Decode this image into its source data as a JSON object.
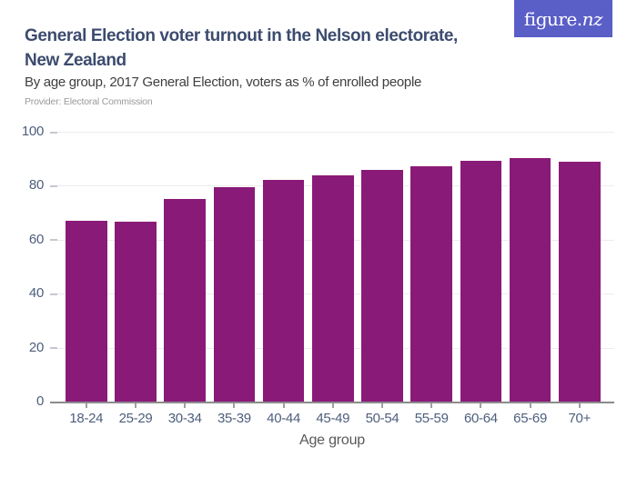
{
  "logo": {
    "text": "figure.nz",
    "text_roman": "figure.",
    "text_italic": "nz",
    "bg_color": "#5A5EC7",
    "text_color": "#FFFFFF"
  },
  "header": {
    "title_line1": "General Election voter turnout in the Nelson electorate,",
    "title_line2": "New Zealand",
    "subtitle": "By age group, 2017 General Election, voters as % of enrolled people",
    "provider": "Provider: Electoral Commission",
    "title_color": "#3C4B6E"
  },
  "chart_data": {
    "type": "bar",
    "title": "General Election voter turnout in the Nelson electorate, New Zealand",
    "subtitle": "By age group, 2017 General Election, voters as % of enrolled people",
    "categories": [
      "18-24",
      "25-29",
      "30-34",
      "35-39",
      "40-44",
      "45-49",
      "50-54",
      "55-59",
      "60-64",
      "65-69",
      "70+"
    ],
    "values": [
      67,
      66.8,
      75,
      79.4,
      82,
      84,
      85.7,
      87.3,
      89.2,
      90.3,
      89
    ],
    "xlabel": "Age group",
    "ylabel": "",
    "ylim": [
      0,
      100
    ],
    "yticks": [
      0,
      20,
      40,
      60,
      80,
      100
    ],
    "grid": true,
    "legend": "none",
    "bar_color": "#8A1A78",
    "axis_label_color": "#4D5E7D",
    "gridline_color": "#ECECEE"
  }
}
